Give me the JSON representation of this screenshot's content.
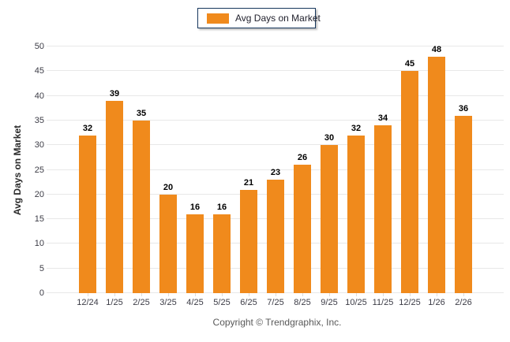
{
  "chart_data": {
    "type": "bar",
    "title": "",
    "categories": [
      "12/24",
      "1/25",
      "2/25",
      "3/25",
      "4/25",
      "5/25",
      "6/25",
      "7/25",
      "8/25",
      "9/25",
      "10/25",
      "11/25",
      "12/25",
      "1/26",
      "2/26"
    ],
    "values": [
      32,
      39,
      35,
      20,
      16,
      16,
      21,
      23,
      26,
      30,
      32,
      34,
      45,
      48,
      36
    ],
    "xlabel": "",
    "ylabel": "Avg Days on Market",
    "ylim": [
      0,
      50
    ],
    "ytick_step": 5,
    "grid": true,
    "legend_position": "top-center",
    "series_name": "Avg Days on Market",
    "bar_color": "#F08A1C",
    "value_labels_shown": true
  },
  "legend": {
    "label": "Avg Days on Market"
  },
  "y_axis": {
    "title": "Avg Days on Market"
  },
  "footer": {
    "copyright": "Copyright © Trendgraphix, Inc."
  },
  "colors": {
    "bar": "#F08A1C",
    "gridline": "#E8E8E8",
    "legend_border": "#17375D",
    "legend_text": "#22222E",
    "tick_label": "#3C3C46",
    "value_label": "#000000",
    "footer_text": "#595959"
  }
}
